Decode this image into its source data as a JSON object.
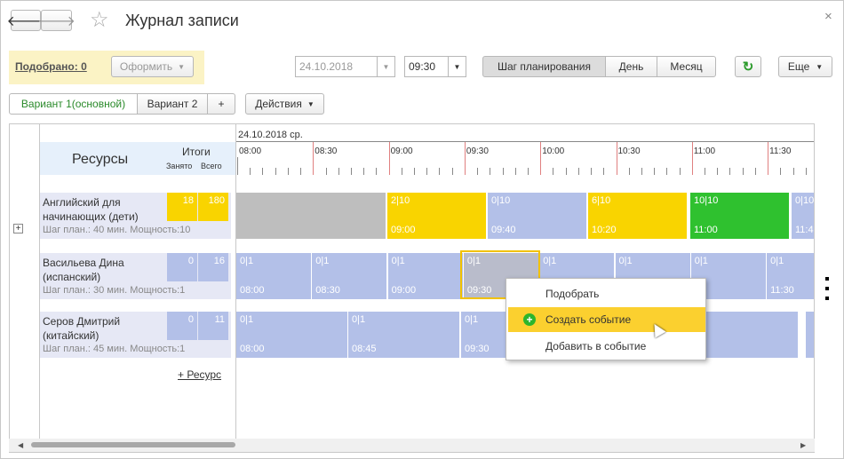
{
  "window": {
    "title": "Журнал записи",
    "close": "×",
    "star": "☆"
  },
  "toolbar": {
    "picked": "Подобрано: 0",
    "make": "Оформить",
    "date": "24.10.2018",
    "time": "09:30",
    "step": "Шаг планирования",
    "day": "День",
    "month": "Месяц",
    "more": "Еще"
  },
  "tabs": {
    "v1": "Вариант 1(основной)",
    "v2": "Вариант 2",
    "plus": "+",
    "actions": "Действия"
  },
  "header": {
    "resources": "Ресурсы",
    "totals": "Итоги",
    "busy": "Занято",
    "all": "Всего",
    "date": "24.10.2018 ср."
  },
  "times": [
    "08:00",
    "08:30",
    "09:00",
    "09:30",
    "10:00",
    "10:30",
    "11:00",
    "11:30"
  ],
  "resources": [
    {
      "name": "Английский для начинающих (дети)",
      "busy": "18",
      "all": "180",
      "step": "Шаг план.: 40 мин. Мощность:10"
    },
    {
      "name": "Васильева  Дина (испанский)",
      "busy": "0",
      "all": "16",
      "step": "Шаг план.: 30 мин. Мощность:1"
    },
    {
      "name": "Серов Дмитрий (китайский)",
      "busy": "0",
      "all": "11",
      "step": "Шаг план.: 45 мин. Мощность:1"
    }
  ],
  "row1": [
    {
      "a": "",
      "b": ""
    },
    {
      "a": "2|10",
      "b": "09:00"
    },
    {
      "a": "0|10",
      "b": "09:40"
    },
    {
      "a": "6|10",
      "b": "10:20"
    },
    {
      "a": "10|10",
      "b": "11:00"
    },
    {
      "a": "0|10",
      "b": "11:4"
    }
  ],
  "row2": [
    {
      "a": "0|1",
      "b": "08:00"
    },
    {
      "a": "0|1",
      "b": "08:30"
    },
    {
      "a": "0|1",
      "b": "09:00"
    },
    {
      "a": "0|1",
      "b": "09:30"
    },
    {
      "a": "0|1",
      "b": ""
    },
    {
      "a": "0|1",
      "b": ""
    },
    {
      "a": "0|1",
      "b": ""
    },
    {
      "a": "0|1",
      "b": "11:30"
    }
  ],
  "row3": [
    {
      "a": "0|1",
      "b": "08:00"
    },
    {
      "a": "0|1",
      "b": "08:45"
    },
    {
      "a": "0|1",
      "b": "09:30"
    }
  ],
  "add_resource": "+ Ресурс",
  "menu": {
    "pick": "Подобрать",
    "create": "Создать событие",
    "add": "Добавить в событие"
  },
  "colors": {
    "yellow": "#f9d400",
    "green": "#2fc12f",
    "blue": "#b3c0e8",
    "gray": "#bebebe",
    "menu_hl": "#fbd02f"
  }
}
